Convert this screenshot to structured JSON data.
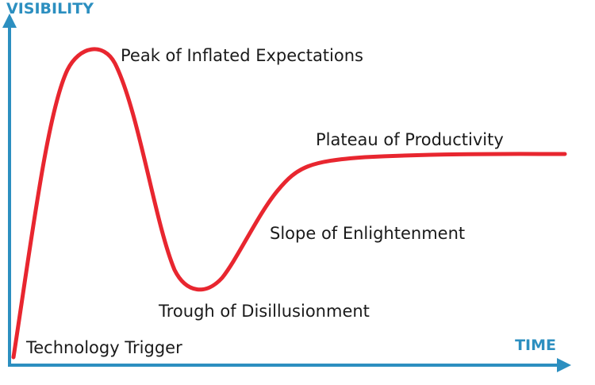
{
  "diagram": {
    "y_axis_label": "VISIBILITY",
    "x_axis_label": "TIME",
    "phases": {
      "trigger": "Technology Trigger",
      "peak": "Peak of Inflated Expectations",
      "trough": "Trough of Disillusionment",
      "slope": "Slope of Enlightenment",
      "plateau": "Plateau of Productivity"
    }
  },
  "colors": {
    "axis": "#2c8fc0",
    "curve": "#e8262f",
    "text": "#1a1a1a"
  }
}
